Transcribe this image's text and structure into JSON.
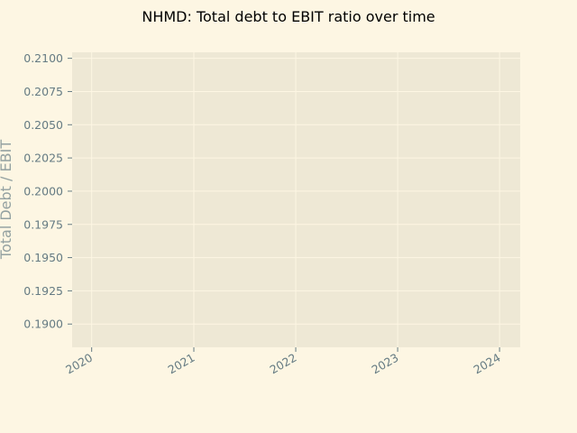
{
  "chart_data": {
    "type": "line",
    "title": "NHMD: Total debt to EBIT ratio over time",
    "xlabel": "",
    "ylabel": "Total Debt / EBIT",
    "x_ticks": [
      "2020",
      "2021",
      "2022",
      "2023",
      "2024"
    ],
    "y_ticks": [
      "0.1900",
      "0.1925",
      "0.1950",
      "0.1975",
      "0.2000",
      "0.2025",
      "0.2050",
      "0.2075",
      "0.2100"
    ],
    "ylim": [
      0.18825,
      0.21045
    ],
    "xlim": [
      "2019-10-23",
      "2024-03-15"
    ],
    "series": [],
    "grid": true,
    "colors": {
      "figure_background": "#fdf6e3",
      "plot_background": "#eee8d5",
      "grid": "#fdf6e3",
      "tick_text": "#657b83",
      "label_text": "#93a1a1",
      "title_text": "#000000"
    }
  }
}
